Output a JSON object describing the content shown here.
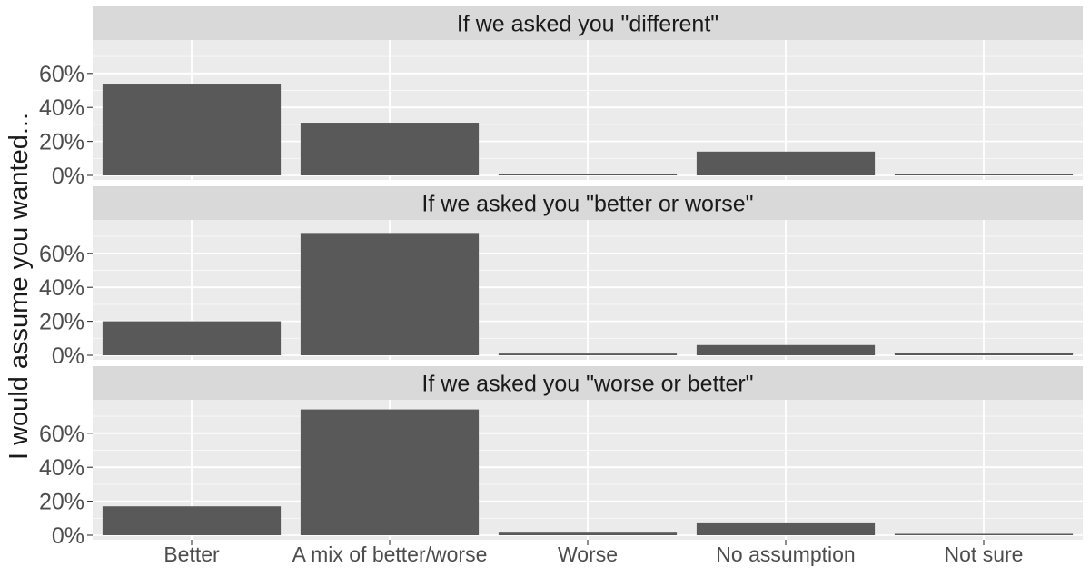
{
  "chart_data": {
    "type": "bar",
    "faceted": true,
    "ylabel": "I would assume you wanted...",
    "xlabel": "",
    "categories": [
      "Better",
      "A mix of better/worse",
      "Worse",
      "No assumption",
      "Not sure"
    ],
    "y_tick_labels": [
      "0%",
      "20%",
      "40%",
      "60%"
    ],
    "ylim": [
      0,
      0.78
    ],
    "grid": true,
    "legend": "none",
    "colors": {
      "bar": "#595959",
      "panel_background": "#ebebeb",
      "strip_background": "#d9d9d9",
      "gridline": "#ffffff",
      "text": "#1a1a1a",
      "axis_text": "#4d4d4d"
    },
    "panels": [
      {
        "title": "If we asked you \"different\"",
        "values": [
          0.54,
          0.31,
          0.005,
          0.14,
          0.005
        ]
      },
      {
        "title": "If we asked you \"better or worse\"",
        "values": [
          0.2,
          0.72,
          0.01,
          0.06,
          0.015
        ]
      },
      {
        "title": "If we asked you \"worse or better\"",
        "values": [
          0.17,
          0.74,
          0.015,
          0.07,
          0.005
        ]
      }
    ]
  }
}
